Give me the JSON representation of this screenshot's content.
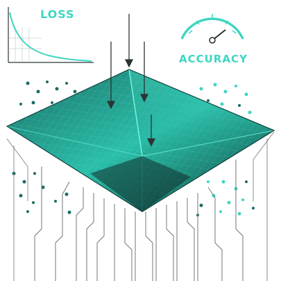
{
  "labels": {
    "loss": "LOSS",
    "accuracy": "ACCURACY"
  },
  "colors": {
    "accent": "#3fd6c1",
    "accent_dark": "#0f6f68",
    "surface_dark": "#12403f",
    "ink": "#1f2a2a"
  },
  "icons": [
    "loss-curve-icon",
    "accuracy-gauge-icon",
    "arrow-down-icon"
  ]
}
